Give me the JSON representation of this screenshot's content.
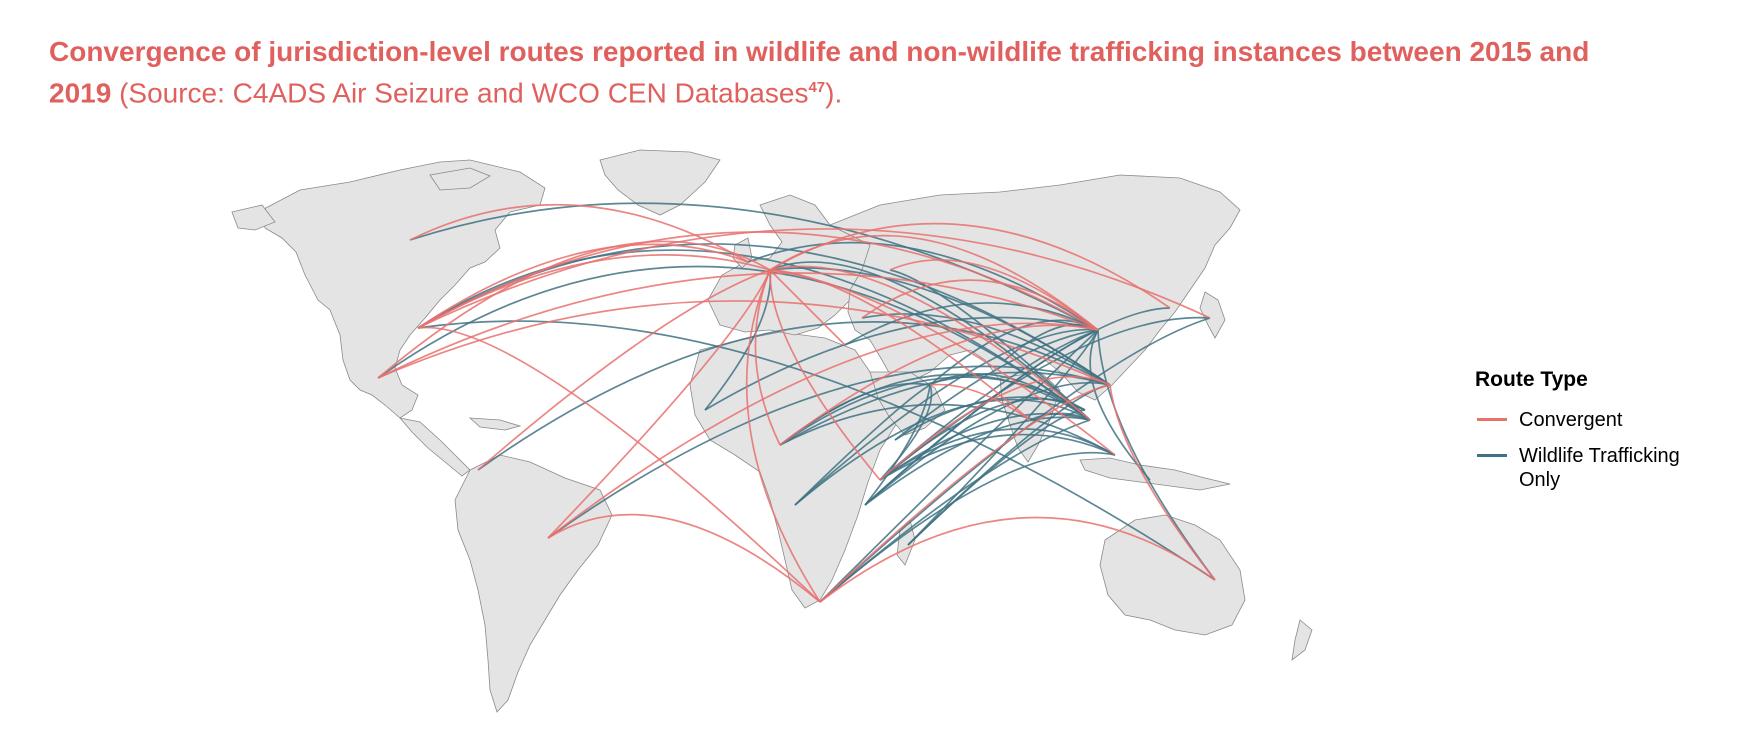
{
  "title": {
    "bold": "Convergence of jurisdiction-level routes reported in wildlife and non-wildlife trafficking instances between 2015 and 2019",
    "source": " (Source: C4ADS Air Seizure and WCO CEN Databases",
    "footnote": "47",
    "end": ")."
  },
  "legend": {
    "title": "Route Type",
    "items": [
      {
        "label": "Convergent",
        "color": "#e8716e"
      },
      {
        "label": "Wildlife Trafficking Only",
        "color": "#3f7283"
      }
    ]
  },
  "colors": {
    "land": "#e4e4e4",
    "border": "#8a8a8a",
    "convergent": "#e8716e",
    "wildlife": "#3f7283"
  }
}
